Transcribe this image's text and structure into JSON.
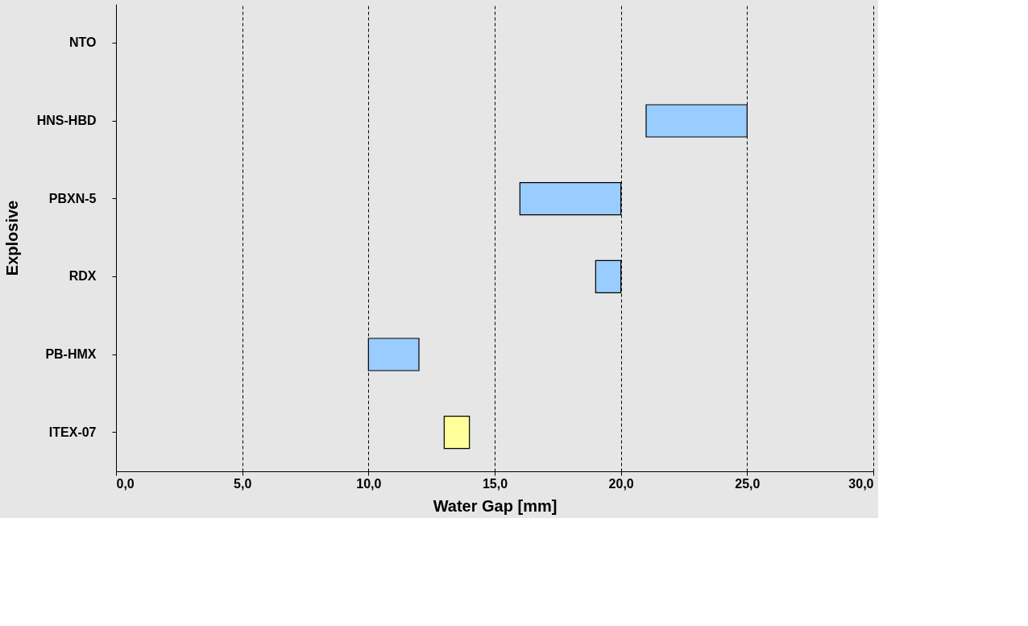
{
  "chart_data": {
    "type": "bar",
    "orientation": "horizontal",
    "xlabel": "Water Gap [mm]",
    "ylabel": "Explosive",
    "categories": [
      "NTO",
      "HNS-HBD",
      "PBXN-5",
      "RDX",
      "PB-HMX",
      "ITEX-07"
    ],
    "base": [
      null,
      21,
      16,
      19,
      10,
      13
    ],
    "values": [
      null,
      4,
      4,
      1,
      2,
      1
    ],
    "colors": [
      "#99ccff",
      "#99ccff",
      "#99ccff",
      "#99ccff",
      "#99ccff",
      "#ffff99"
    ],
    "xlim": [
      0,
      30
    ],
    "xticks": [
      {
        "value": 0,
        "label": "0,0"
      },
      {
        "value": 5,
        "label": "5,0"
      },
      {
        "value": 10,
        "label": "10,0"
      },
      {
        "value": 15,
        "label": "15,0"
      },
      {
        "value": 20,
        "label": "20,0"
      },
      {
        "value": 25,
        "label": "25,0"
      },
      {
        "value": 30,
        "label": "30,0"
      }
    ],
    "grid": "x"
  }
}
